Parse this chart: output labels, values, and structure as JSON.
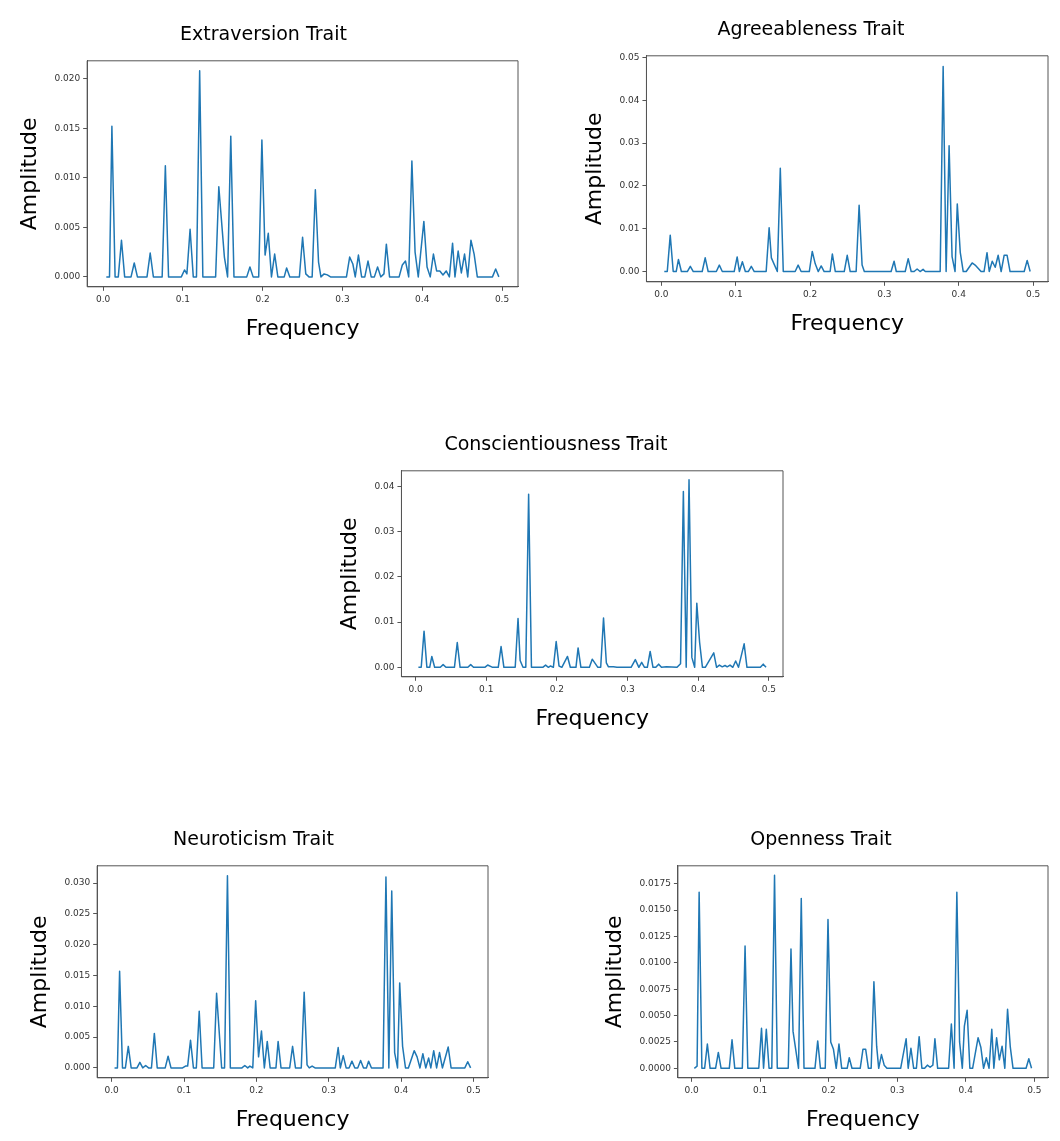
{
  "chart_data": [
    {
      "type": "line",
      "title": "Extraversion Trait",
      "xlabel": "Frequency",
      "ylabel": "Amplitude",
      "xlim": [
        -0.02,
        0.52
      ],
      "ylim": [
        -0.001,
        0.0218
      ],
      "xticks": [
        {
          "value": 0,
          "label": "0.0"
        },
        {
          "value": 0.1,
          "label": "0.1"
        },
        {
          "value": 0.2,
          "label": "0.2"
        },
        {
          "value": 0.3,
          "label": "0.3"
        },
        {
          "value": 0.4,
          "label": "0.4"
        },
        {
          "value": 0.5,
          "label": "0.5"
        }
      ],
      "yticks": [
        {
          "value": 0,
          "label": "0.000"
        },
        {
          "value": 0.005,
          "label": "0.005"
        },
        {
          "value": 0.01,
          "label": "0.010"
        },
        {
          "value": 0.015,
          "label": "0.015"
        },
        {
          "value": 0.02,
          "label": "0.020"
        }
      ],
      "grid": false,
      "series": [
        {
          "color": "#1f77b4",
          "x": [
            0.004,
            0.008,
            0.011,
            0.015,
            0.019,
            0.023,
            0.027,
            0.035,
            0.039,
            0.043,
            0.055,
            0.059,
            0.063,
            0.074,
            0.078,
            0.082,
            0.098,
            0.102,
            0.105,
            0.109,
            0.113,
            0.117,
            0.121,
            0.125,
            0.141,
            0.145,
            0.152,
            0.156,
            0.16,
            0.164,
            0.18,
            0.184,
            0.188,
            0.195,
            0.199,
            0.203,
            0.207,
            0.211,
            0.215,
            0.219,
            0.227,
            0.23,
            0.234,
            0.246,
            0.25,
            0.254,
            0.258,
            0.262,
            0.266,
            0.27,
            0.273,
            0.277,
            0.281,
            0.285,
            0.305,
            0.309,
            0.313,
            0.316,
            0.32,
            0.324,
            0.328,
            0.332,
            0.336,
            0.34,
            0.344,
            0.348,
            0.352,
            0.355,
            0.359,
            0.371,
            0.375,
            0.379,
            0.383,
            0.387,
            0.391,
            0.395,
            0.402,
            0.406,
            0.41,
            0.414,
            0.418,
            0.422,
            0.426,
            0.43,
            0.434,
            0.438,
            0.441,
            0.445,
            0.449,
            0.453,
            0.457,
            0.461,
            0.465,
            0.469,
            0.488,
            0.492,
            0.496
          ],
          "values": [
            0,
            0,
            0.0152,
            0,
            0,
            0.0037,
            0,
            0,
            0.0014,
            0,
            0,
            0.0024,
            0,
            0,
            0.0112,
            0,
            0,
            0.0007,
            0.0003,
            0.0048,
            0,
            0,
            0.0208,
            0,
            0,
            0.0091,
            0.002,
            0,
            0.0142,
            0,
            0,
            0.001,
            0,
            0,
            0.0138,
            0.0022,
            0.0044,
            0,
            0.0023,
            0,
            0,
            0.0009,
            0,
            0,
            0.004,
            0.0003,
            0,
            0,
            0.0088,
            0.0015,
            0,
            0.0003,
            0.0002,
            0,
            0,
            0.002,
            0.0013,
            0,
            0.0022,
            0,
            0,
            0.0016,
            0,
            0,
            0.001,
            0,
            0.0003,
            0.0033,
            0,
            0,
            0.0012,
            0.0016,
            0,
            0.0117,
            0.0025,
            0,
            0.0056,
            0.001,
            0,
            0.0023,
            0.0006,
            0.0006,
            0.0002,
            0.0006,
            0,
            0.0034,
            0,
            0.0026,
            0.0004,
            0.0023,
            0,
            0.0037,
            0.0023,
            0,
            0,
            0.0008,
            0
          ]
        }
      ]
    },
    {
      "type": "line",
      "title": "Agreeableness Trait",
      "xlabel": "Frequency",
      "ylabel": "Amplitude",
      "xlim": [
        -0.02,
        0.52
      ],
      "ylim": [
        -0.0024,
        0.0504
      ],
      "xticks": [
        {
          "value": 0,
          "label": "0.0"
        },
        {
          "value": 0.1,
          "label": "0.1"
        },
        {
          "value": 0.2,
          "label": "0.2"
        },
        {
          "value": 0.3,
          "label": "0.3"
        },
        {
          "value": 0.4,
          "label": "0.4"
        },
        {
          "value": 0.5,
          "label": "0.5"
        }
      ],
      "yticks": [
        {
          "value": 0,
          "label": "0.00"
        },
        {
          "value": 0.01,
          "label": "0.01"
        },
        {
          "value": 0.02,
          "label": "0.02"
        },
        {
          "value": 0.03,
          "label": "0.03"
        },
        {
          "value": 0.04,
          "label": "0.04"
        },
        {
          "value": 0.05,
          "label": "0.05"
        }
      ],
      "grid": false,
      "series": [
        {
          "color": "#1f77b4",
          "x": [
            0.004,
            0.008,
            0.012,
            0.016,
            0.02,
            0.023,
            0.027,
            0.035,
            0.039,
            0.043,
            0.055,
            0.059,
            0.063,
            0.074,
            0.078,
            0.082,
            0.098,
            0.102,
            0.105,
            0.109,
            0.113,
            0.117,
            0.121,
            0.125,
            0.141,
            0.145,
            0.148,
            0.156,
            0.16,
            0.164,
            0.18,
            0.184,
            0.188,
            0.199,
            0.203,
            0.207,
            0.211,
            0.215,
            0.219,
            0.227,
            0.23,
            0.234,
            0.246,
            0.25,
            0.254,
            0.262,
            0.266,
            0.27,
            0.273,
            0.309,
            0.313,
            0.316,
            0.328,
            0.332,
            0.336,
            0.34,
            0.344,
            0.348,
            0.352,
            0.355,
            0.375,
            0.379,
            0.383,
            0.387,
            0.391,
            0.395,
            0.398,
            0.402,
            0.406,
            0.41,
            0.418,
            0.422,
            0.43,
            0.434,
            0.438,
            0.441,
            0.445,
            0.449,
            0.453,
            0.457,
            0.461,
            0.465,
            0.469,
            0.488,
            0.492,
            0.496
          ],
          "values": [
            0,
            0,
            0.0085,
            0,
            0,
            0.0028,
            0,
            0,
            0.0012,
            0,
            0,
            0.0032,
            0,
            0,
            0.0015,
            0,
            0,
            0.0034,
            0,
            0.0023,
            0,
            0,
            0.0012,
            0,
            0,
            0.0102,
            0.0032,
            0,
            0.0241,
            0,
            0,
            0.0015,
            0,
            0,
            0.0047,
            0.0018,
            0,
            0.0013,
            0,
            0,
            0.0041,
            0,
            0,
            0.0038,
            0,
            0,
            0.0155,
            0.0015,
            0,
            0,
            0.0024,
            0,
            0,
            0.003,
            0,
            0,
            0.0006,
            0,
            0.0005,
            0,
            0,
            0.0479,
            0,
            0.0294,
            0.0035,
            0,
            0.0158,
            0.0045,
            0,
            0,
            0.002,
            0.0015,
            0,
            0,
            0.0044,
            0,
            0.0024,
            0.001,
            0.0038,
            0,
            0.0038,
            0.0038,
            0,
            0,
            0.0026,
            0
          ]
        }
      ]
    },
    {
      "type": "line",
      "title": "Conscientiousness Trait",
      "xlabel": "Frequency",
      "ylabel": "Amplitude",
      "xlim": [
        -0.02,
        0.52
      ],
      "ylim": [
        -0.0021,
        0.0435
      ],
      "xticks": [
        {
          "value": 0,
          "label": "0.0"
        },
        {
          "value": 0.1,
          "label": "0.1"
        },
        {
          "value": 0.2,
          "label": "0.2"
        },
        {
          "value": 0.3,
          "label": "0.3"
        },
        {
          "value": 0.4,
          "label": "0.4"
        },
        {
          "value": 0.5,
          "label": "0.5"
        }
      ],
      "yticks": [
        {
          "value": 0,
          "label": "0.00"
        },
        {
          "value": 0.01,
          "label": "0.01"
        },
        {
          "value": 0.02,
          "label": "0.02"
        },
        {
          "value": 0.03,
          "label": "0.03"
        },
        {
          "value": 0.04,
          "label": "0.04"
        }
      ],
      "grid": false,
      "series": [
        {
          "color": "#1f77b4",
          "x": [
            0.004,
            0.008,
            0.012,
            0.016,
            0.02,
            0.023,
            0.027,
            0.035,
            0.039,
            0.043,
            0.055,
            0.059,
            0.063,
            0.074,
            0.078,
            0.082,
            0.098,
            0.102,
            0.109,
            0.117,
            0.121,
            0.125,
            0.141,
            0.145,
            0.148,
            0.152,
            0.156,
            0.16,
            0.164,
            0.18,
            0.184,
            0.188,
            0.191,
            0.195,
            0.199,
            0.203,
            0.207,
            0.215,
            0.219,
            0.227,
            0.23,
            0.234,
            0.246,
            0.25,
            0.258,
            0.262,
            0.266,
            0.27,
            0.273,
            0.28,
            0.285,
            0.305,
            0.311,
            0.316,
            0.32,
            0.324,
            0.328,
            0.332,
            0.336,
            0.34,
            0.344,
            0.348,
            0.355,
            0.37,
            0.375,
            0.379,
            0.383,
            0.387,
            0.391,
            0.395,
            0.398,
            0.402,
            0.406,
            0.41,
            0.422,
            0.426,
            0.43,
            0.434,
            0.438,
            0.441,
            0.445,
            0.449,
            0.453,
            0.457,
            0.465,
            0.469,
            0.488,
            0.492,
            0.496
          ],
          "values": [
            0,
            0,
            0.008,
            0,
            0,
            0.0024,
            0,
            0,
            0.0006,
            0,
            0,
            0.0055,
            0,
            0,
            0.0006,
            0,
            0,
            0.0005,
            0,
            0,
            0.0046,
            0,
            0,
            0.0108,
            0.0015,
            0,
            0,
            0.0383,
            0,
            0,
            0.0005,
            0,
            0.0003,
            0,
            0.0057,
            0.0003,
            0,
            0.0024,
            0,
            0,
            0.0043,
            0,
            0,
            0.0018,
            0,
            0,
            0.0109,
            0.001,
            0.0001,
            0.0001,
            0,
            0,
            0.0017,
            0,
            0.0011,
            0,
            0,
            0.0035,
            0,
            0,
            0.0007,
            0,
            0.0001,
            0,
            0.0008,
            0.0389,
            0,
            0.0415,
            0.0022,
            0,
            0.0142,
            0.0055,
            0,
            0,
            0.0032,
            0,
            0.0005,
            0.0001,
            0.0004,
            0.0001,
            0.0005,
            0,
            0.0014,
            0,
            0.0052,
            0,
            0,
            0.0007,
            0
          ]
        }
      ]
    },
    {
      "type": "line",
      "title": "Neuroticism Trait",
      "xlabel": "Frequency",
      "ylabel": "Amplitude",
      "xlim": [
        -0.02,
        0.52
      ],
      "ylim": [
        -0.0016,
        0.0328
      ],
      "xticks": [
        {
          "value": 0,
          "label": "0.0"
        },
        {
          "value": 0.1,
          "label": "0.1"
        },
        {
          "value": 0.2,
          "label": "0.2"
        },
        {
          "value": 0.3,
          "label": "0.3"
        },
        {
          "value": 0.4,
          "label": "0.4"
        },
        {
          "value": 0.5,
          "label": "0.5"
        }
      ],
      "yticks": [
        {
          "value": 0,
          "label": "0.000"
        },
        {
          "value": 0.005,
          "label": "0.005"
        },
        {
          "value": 0.01,
          "label": "0.010"
        },
        {
          "value": 0.015,
          "label": "0.015"
        },
        {
          "value": 0.02,
          "label": "0.020"
        },
        {
          "value": 0.025,
          "label": "0.025"
        },
        {
          "value": 0.03,
          "label": "0.030"
        }
      ],
      "grid": false,
      "series": [
        {
          "color": "#1f77b4",
          "x": [
            0.004,
            0.008,
            0.011,
            0.015,
            0.019,
            0.023,
            0.027,
            0.035,
            0.039,
            0.043,
            0.047,
            0.051,
            0.055,
            0.059,
            0.063,
            0.074,
            0.078,
            0.082,
            0.098,
            0.102,
            0.105,
            0.109,
            0.113,
            0.117,
            0.121,
            0.125,
            0.141,
            0.145,
            0.152,
            0.156,
            0.16,
            0.164,
            0.18,
            0.184,
            0.188,
            0.191,
            0.195,
            0.199,
            0.203,
            0.207,
            0.211,
            0.215,
            0.219,
            0.227,
            0.23,
            0.234,
            0.246,
            0.25,
            0.254,
            0.262,
            0.266,
            0.27,
            0.273,
            0.277,
            0.281,
            0.309,
            0.313,
            0.316,
            0.32,
            0.324,
            0.328,
            0.332,
            0.336,
            0.34,
            0.344,
            0.348,
            0.352,
            0.355,
            0.359,
            0.375,
            0.379,
            0.383,
            0.387,
            0.391,
            0.395,
            0.398,
            0.402,
            0.406,
            0.41,
            0.418,
            0.422,
            0.426,
            0.43,
            0.434,
            0.438,
            0.441,
            0.445,
            0.449,
            0.453,
            0.457,
            0.465,
            0.469,
            0.488,
            0.492,
            0.496
          ],
          "values": [
            0,
            0,
            0.0157,
            0,
            0,
            0.0035,
            0,
            0,
            0.0009,
            0,
            0.0004,
            0,
            0,
            0.0056,
            0,
            0,
            0.0019,
            0,
            0,
            0.0003,
            0.0003,
            0.0045,
            0,
            0,
            0.0092,
            0,
            0,
            0.0121,
            0,
            0,
            0.0312,
            0,
            0,
            0.0004,
            0,
            0.0003,
            0,
            0.0109,
            0.0018,
            0.006,
            0,
            0.0043,
            0,
            0,
            0.0043,
            0,
            0,
            0.0035,
            0,
            0,
            0.0123,
            0.0005,
            0,
            0.0003,
            0,
            0,
            0.0033,
            0,
            0.002,
            0,
            0,
            0.0011,
            0,
            0,
            0.0012,
            0,
            0,
            0.0011,
            0,
            0,
            0.031,
            0,
            0.0287,
            0.0025,
            0,
            0.0138,
            0.0035,
            0,
            0,
            0.0028,
            0.0018,
            0,
            0.0023,
            0,
            0.0016,
            0,
            0.0028,
            0,
            0.0025,
            0,
            0.0034,
            0,
            0,
            0.001,
            0
          ]
        }
      ]
    },
    {
      "type": "line",
      "title": "Openness Trait",
      "xlabel": "Frequency",
      "ylabel": "Amplitude",
      "xlim": [
        -0.02,
        0.52
      ],
      "ylim": [
        -0.0009,
        0.0192
      ],
      "xticks": [
        {
          "value": 0,
          "label": "0.0"
        },
        {
          "value": 0.1,
          "label": "0.1"
        },
        {
          "value": 0.2,
          "label": "0.2"
        },
        {
          "value": 0.3,
          "label": "0.3"
        },
        {
          "value": 0.4,
          "label": "0.4"
        },
        {
          "value": 0.5,
          "label": "0.5"
        }
      ],
      "yticks": [
        {
          "value": 0,
          "label": "0.0000"
        },
        {
          "value": 0.0025,
          "label": "0.0025"
        },
        {
          "value": 0.005,
          "label": "0.0050"
        },
        {
          "value": 0.0075,
          "label": "0.0075"
        },
        {
          "value": 0.01,
          "label": "0.0100"
        },
        {
          "value": 0.0125,
          "label": "0.0125"
        },
        {
          "value": 0.015,
          "label": "0.0150"
        },
        {
          "value": 0.0175,
          "label": "0.0175"
        }
      ],
      "grid": false,
      "series": [
        {
          "color": "#1f77b4",
          "x": [
            0.004,
            0.008,
            0.011,
            0.015,
            0.019,
            0.023,
            0.027,
            0.035,
            0.039,
            0.043,
            0.055,
            0.059,
            0.063,
            0.074,
            0.078,
            0.082,
            0.098,
            0.102,
            0.105,
            0.109,
            0.113,
            0.117,
            0.121,
            0.125,
            0.141,
            0.145,
            0.148,
            0.156,
            0.16,
            0.164,
            0.18,
            0.184,
            0.188,
            0.195,
            0.199,
            0.203,
            0.207,
            0.211,
            0.215,
            0.219,
            0.227,
            0.23,
            0.234,
            0.246,
            0.25,
            0.254,
            0.258,
            0.262,
            0.266,
            0.27,
            0.273,
            0.277,
            0.281,
            0.285,
            0.305,
            0.313,
            0.316,
            0.32,
            0.324,
            0.328,
            0.332,
            0.336,
            0.34,
            0.344,
            0.348,
            0.352,
            0.355,
            0.359,
            0.375,
            0.379,
            0.383,
            0.387,
            0.391,
            0.395,
            0.398,
            0.402,
            0.406,
            0.41,
            0.418,
            0.422,
            0.426,
            0.43,
            0.434,
            0.438,
            0.441,
            0.445,
            0.449,
            0.453,
            0.457,
            0.461,
            0.465,
            0.469,
            0.488,
            0.492,
            0.496
          ],
          "values": [
            0,
            0.0002,
            0.0167,
            0,
            0,
            0.0023,
            0,
            0,
            0.0015,
            0,
            0,
            0.0027,
            0,
            0,
            0.0116,
            0,
            0,
            0.0038,
            0,
            0.0037,
            0,
            0,
            0.0183,
            0,
            0,
            0.0113,
            0.0035,
            0,
            0.0161,
            0,
            0,
            0.0026,
            0,
            0,
            0.0141,
            0.0025,
            0.0018,
            0,
            0.0023,
            0,
            0,
            0.001,
            0,
            0,
            0.0018,
            0.0018,
            0,
            0,
            0.0082,
            0.0021,
            0,
            0.0013,
            0.0003,
            0,
            0,
            0.0028,
            0,
            0.0019,
            0,
            0,
            0.003,
            0,
            0,
            0.0003,
            0.0001,
            0.0003,
            0.0028,
            0,
            0,
            0.0042,
            0,
            0.0167,
            0.0025,
            0,
            0.004,
            0.0055,
            0,
            0,
            0.0029,
            0.002,
            0,
            0.001,
            0,
            0.0037,
            0,
            0.0029,
            0.0008,
            0.0021,
            0,
            0.0056,
            0.002,
            0,
            0,
            0.0009,
            0
          ]
        }
      ]
    }
  ]
}
